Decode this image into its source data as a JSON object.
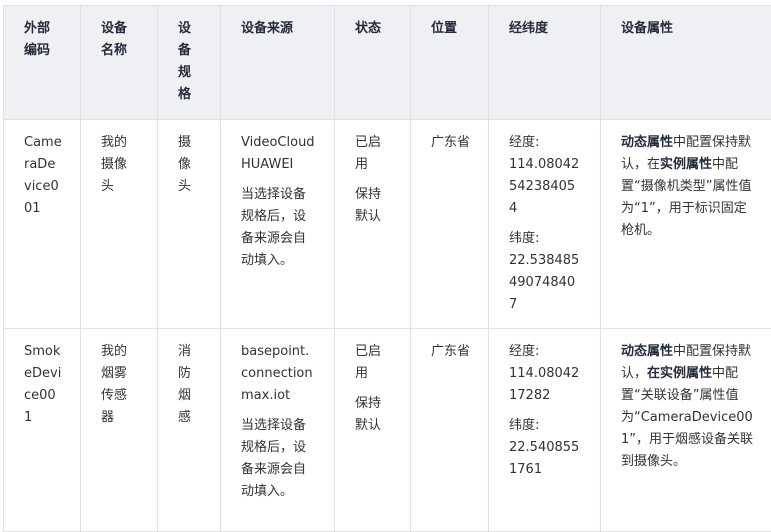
{
  "headers": [
    "外部编码",
    "设备名称",
    "设备规格",
    "设备来源",
    "状态",
    "位置",
    "经纬度",
    "设备属性"
  ],
  "rows": [
    {
      "code": "CameraDevice001",
      "name": "我的摄像头",
      "spec": "摄像头",
      "source": "VideoCloudHUAWEI",
      "source_note": "当选择设备规格后，设备来源会自动填入。",
      "status": "已启用",
      "status_note": "保持默认",
      "location": "广东省",
      "lng_label": "经度:",
      "lng": "114.08042542384054",
      "lat_label": "纬度:",
      "lat": "22.538485490748407",
      "attr": [
        {
          "t": "动态属性",
          "b": true
        },
        {
          "t": "中配置保持默认，在",
          "b": false
        },
        {
          "t": "实例属性",
          "b": true
        },
        {
          "t": "中配置“摄像机类型”属性值为“1”，用于标识固定枪机。",
          "b": false
        }
      ]
    },
    {
      "code": "SmokeDevice001",
      "name": "我的烟雾传感器",
      "spec": "消防烟感",
      "source": "basepoint.connectionmax.iot",
      "source_note": "当选择设备规格后，设备来源会自动填入。",
      "status": "已启用",
      "status_note": "保持默认",
      "location": "广东省",
      "lng_label": "经度:",
      "lng": "114.0804217282",
      "lat_label": "纬度:",
      "lat": "22.5408551761",
      "attr": [
        {
          "t": "动态属性",
          "b": true
        },
        {
          "t": "中配置保持默认，",
          "b": false
        },
        {
          "t": "在实例属性",
          "b": true
        },
        {
          "t": "中配置“关联设备”属性值为“CameraDevice001”，用于烟感设备关联到摄像头。",
          "b": false
        }
      ]
    }
  ]
}
